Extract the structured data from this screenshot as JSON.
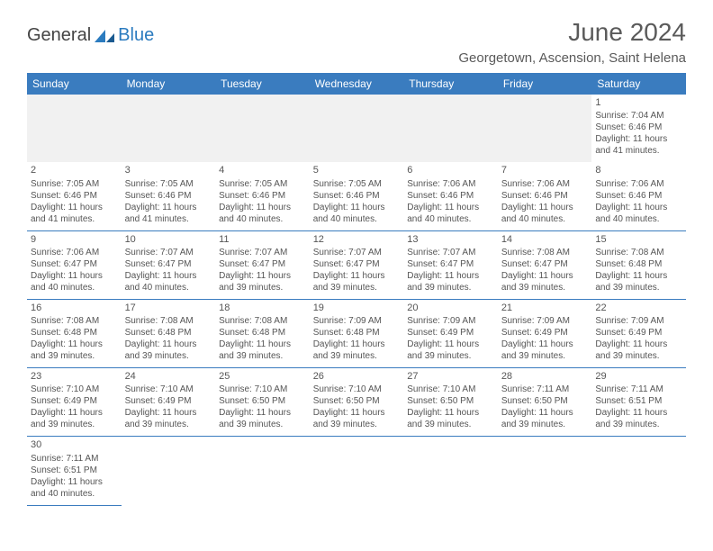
{
  "logo": {
    "text1": "General",
    "text2": "Blue"
  },
  "title": "June 2024",
  "location": "Georgetown, Ascension, Saint Helena",
  "colors": {
    "header_bg": "#3a7cbf",
    "header_text": "#ffffff",
    "border": "#3a7cbf",
    "text": "#555555",
    "blank_bg": "#f1f1f1",
    "logo_blue": "#2b7bbf"
  },
  "weekdays": [
    "Sunday",
    "Monday",
    "Tuesday",
    "Wednesday",
    "Thursday",
    "Friday",
    "Saturday"
  ],
  "weeks": [
    [
      null,
      null,
      null,
      null,
      null,
      null,
      {
        "n": "1",
        "sr": "Sunrise: 7:04 AM",
        "ss": "Sunset: 6:46 PM",
        "d1": "Daylight: 11 hours",
        "d2": "and 41 minutes."
      }
    ],
    [
      {
        "n": "2",
        "sr": "Sunrise: 7:05 AM",
        "ss": "Sunset: 6:46 PM",
        "d1": "Daylight: 11 hours",
        "d2": "and 41 minutes."
      },
      {
        "n": "3",
        "sr": "Sunrise: 7:05 AM",
        "ss": "Sunset: 6:46 PM",
        "d1": "Daylight: 11 hours",
        "d2": "and 41 minutes."
      },
      {
        "n": "4",
        "sr": "Sunrise: 7:05 AM",
        "ss": "Sunset: 6:46 PM",
        "d1": "Daylight: 11 hours",
        "d2": "and 40 minutes."
      },
      {
        "n": "5",
        "sr": "Sunrise: 7:05 AM",
        "ss": "Sunset: 6:46 PM",
        "d1": "Daylight: 11 hours",
        "d2": "and 40 minutes."
      },
      {
        "n": "6",
        "sr": "Sunrise: 7:06 AM",
        "ss": "Sunset: 6:46 PM",
        "d1": "Daylight: 11 hours",
        "d2": "and 40 minutes."
      },
      {
        "n": "7",
        "sr": "Sunrise: 7:06 AM",
        "ss": "Sunset: 6:46 PM",
        "d1": "Daylight: 11 hours",
        "d2": "and 40 minutes."
      },
      {
        "n": "8",
        "sr": "Sunrise: 7:06 AM",
        "ss": "Sunset: 6:46 PM",
        "d1": "Daylight: 11 hours",
        "d2": "and 40 minutes."
      }
    ],
    [
      {
        "n": "9",
        "sr": "Sunrise: 7:06 AM",
        "ss": "Sunset: 6:47 PM",
        "d1": "Daylight: 11 hours",
        "d2": "and 40 minutes."
      },
      {
        "n": "10",
        "sr": "Sunrise: 7:07 AM",
        "ss": "Sunset: 6:47 PM",
        "d1": "Daylight: 11 hours",
        "d2": "and 40 minutes."
      },
      {
        "n": "11",
        "sr": "Sunrise: 7:07 AM",
        "ss": "Sunset: 6:47 PM",
        "d1": "Daylight: 11 hours",
        "d2": "and 39 minutes."
      },
      {
        "n": "12",
        "sr": "Sunrise: 7:07 AM",
        "ss": "Sunset: 6:47 PM",
        "d1": "Daylight: 11 hours",
        "d2": "and 39 minutes."
      },
      {
        "n": "13",
        "sr": "Sunrise: 7:07 AM",
        "ss": "Sunset: 6:47 PM",
        "d1": "Daylight: 11 hours",
        "d2": "and 39 minutes."
      },
      {
        "n": "14",
        "sr": "Sunrise: 7:08 AM",
        "ss": "Sunset: 6:47 PM",
        "d1": "Daylight: 11 hours",
        "d2": "and 39 minutes."
      },
      {
        "n": "15",
        "sr": "Sunrise: 7:08 AM",
        "ss": "Sunset: 6:48 PM",
        "d1": "Daylight: 11 hours",
        "d2": "and 39 minutes."
      }
    ],
    [
      {
        "n": "16",
        "sr": "Sunrise: 7:08 AM",
        "ss": "Sunset: 6:48 PM",
        "d1": "Daylight: 11 hours",
        "d2": "and 39 minutes."
      },
      {
        "n": "17",
        "sr": "Sunrise: 7:08 AM",
        "ss": "Sunset: 6:48 PM",
        "d1": "Daylight: 11 hours",
        "d2": "and 39 minutes."
      },
      {
        "n": "18",
        "sr": "Sunrise: 7:08 AM",
        "ss": "Sunset: 6:48 PM",
        "d1": "Daylight: 11 hours",
        "d2": "and 39 minutes."
      },
      {
        "n": "19",
        "sr": "Sunrise: 7:09 AM",
        "ss": "Sunset: 6:48 PM",
        "d1": "Daylight: 11 hours",
        "d2": "and 39 minutes."
      },
      {
        "n": "20",
        "sr": "Sunrise: 7:09 AM",
        "ss": "Sunset: 6:49 PM",
        "d1": "Daylight: 11 hours",
        "d2": "and 39 minutes."
      },
      {
        "n": "21",
        "sr": "Sunrise: 7:09 AM",
        "ss": "Sunset: 6:49 PM",
        "d1": "Daylight: 11 hours",
        "d2": "and 39 minutes."
      },
      {
        "n": "22",
        "sr": "Sunrise: 7:09 AM",
        "ss": "Sunset: 6:49 PM",
        "d1": "Daylight: 11 hours",
        "d2": "and 39 minutes."
      }
    ],
    [
      {
        "n": "23",
        "sr": "Sunrise: 7:10 AM",
        "ss": "Sunset: 6:49 PM",
        "d1": "Daylight: 11 hours",
        "d2": "and 39 minutes."
      },
      {
        "n": "24",
        "sr": "Sunrise: 7:10 AM",
        "ss": "Sunset: 6:49 PM",
        "d1": "Daylight: 11 hours",
        "d2": "and 39 minutes."
      },
      {
        "n": "25",
        "sr": "Sunrise: 7:10 AM",
        "ss": "Sunset: 6:50 PM",
        "d1": "Daylight: 11 hours",
        "d2": "and 39 minutes."
      },
      {
        "n": "26",
        "sr": "Sunrise: 7:10 AM",
        "ss": "Sunset: 6:50 PM",
        "d1": "Daylight: 11 hours",
        "d2": "and 39 minutes."
      },
      {
        "n": "27",
        "sr": "Sunrise: 7:10 AM",
        "ss": "Sunset: 6:50 PM",
        "d1": "Daylight: 11 hours",
        "d2": "and 39 minutes."
      },
      {
        "n": "28",
        "sr": "Sunrise: 7:11 AM",
        "ss": "Sunset: 6:50 PM",
        "d1": "Daylight: 11 hours",
        "d2": "and 39 minutes."
      },
      {
        "n": "29",
        "sr": "Sunrise: 7:11 AM",
        "ss": "Sunset: 6:51 PM",
        "d1": "Daylight: 11 hours",
        "d2": "and 39 minutes."
      }
    ],
    [
      {
        "n": "30",
        "sr": "Sunrise: 7:11 AM",
        "ss": "Sunset: 6:51 PM",
        "d1": "Daylight: 11 hours",
        "d2": "and 40 minutes."
      },
      null,
      null,
      null,
      null,
      null,
      null
    ]
  ]
}
